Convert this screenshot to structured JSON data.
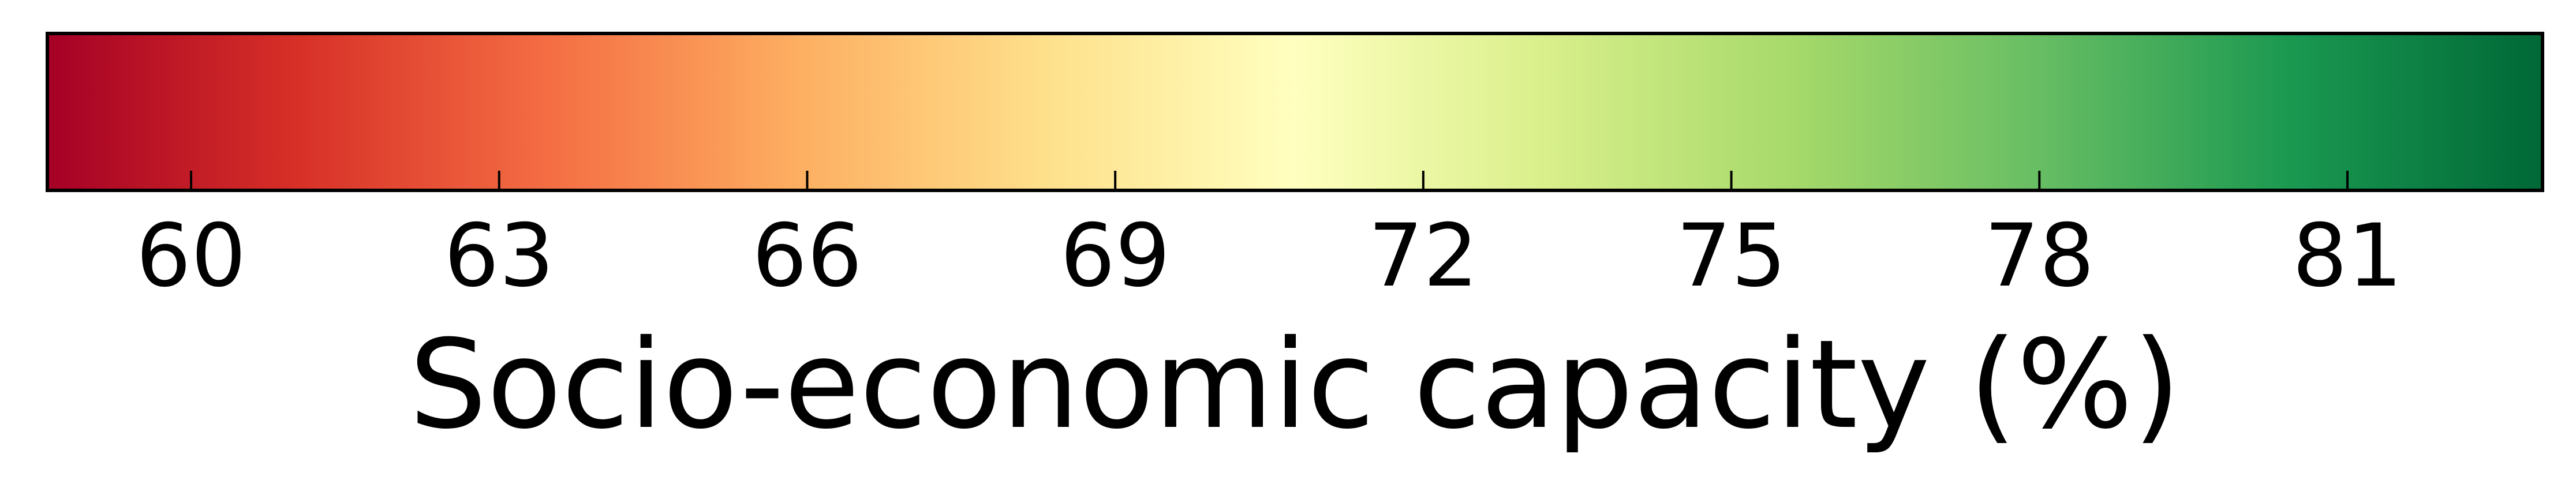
{
  "chart_data": {
    "type": "colorbar",
    "orientation": "horizontal",
    "colormap": "RdYlGn",
    "xlabel": "Socio-economic capacity (%)",
    "range": [
      58.6,
      82.9
    ],
    "ticks": [
      60,
      63,
      66,
      69,
      72,
      75,
      78,
      81
    ],
    "tick_labels": [
      "60",
      "63",
      "66",
      "69",
      "72",
      "75",
      "78",
      "81"
    ],
    "color_stops": [
      "#a50026",
      "#d73027",
      "#f46d43",
      "#fdae61",
      "#fee08b",
      "#ffffbf",
      "#d9ef8b",
      "#a6d96a",
      "#66bd63",
      "#1a9850",
      "#006837"
    ],
    "frame_color": "#000000"
  }
}
